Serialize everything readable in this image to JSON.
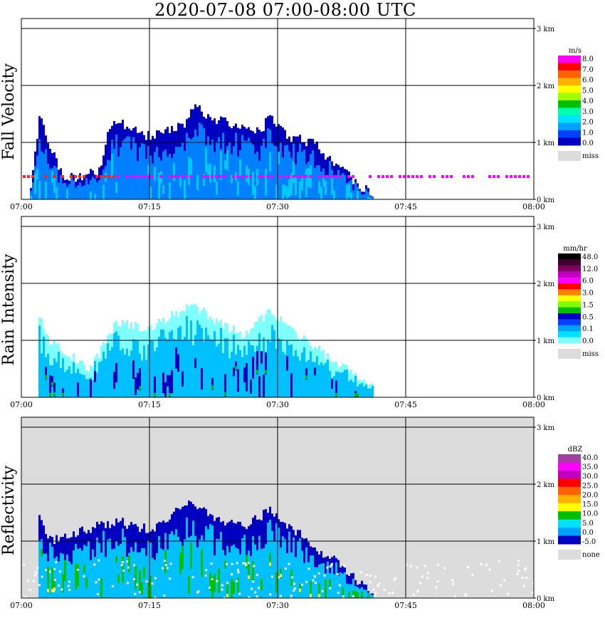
{
  "title": "2020-07-08   07:00-08:00 UTC",
  "x_ticks": [
    "07:00",
    "07:15",
    "07:30",
    "07:45",
    "08:00"
  ],
  "y_ticks": [
    "0 km",
    "1 km",
    "2 km",
    "3 km"
  ],
  "colors": {
    "miss": "#dcdcdc",
    "background": "#ffffff",
    "grid": "#000000"
  },
  "chart_data": [
    {
      "type": "heatmap",
      "title": "Fall Velocity",
      "ylabel": "Fall Velocity",
      "xlim": [
        "07:00",
        "08:00"
      ],
      "ylim_km": [
        0,
        3.0
      ],
      "grid": true,
      "legend_position": "right",
      "legend_unit": "m/s",
      "legend_labels": [
        "8.0",
        "7.0",
        "6.0",
        "5.0",
        "4.0",
        "3.0",
        "2.0",
        "1.0",
        "0.0"
      ],
      "missing_label": "miss",
      "colorscale": [
        "#ff00ff",
        "#ff0000",
        "#ff6000",
        "#ffb000",
        "#ffff00",
        "#a0ff00",
        "#00c000",
        "#00ffb0",
        "#00e0ff",
        "#00a0ff",
        "#0040ff",
        "#0000c0"
      ],
      "echo_tops_km": [
        {
          "t": "07:01",
          "top": 0.2
        },
        {
          "t": "07:02",
          "top": 1.45
        },
        {
          "t": "07:03",
          "top": 1.0
        },
        {
          "t": "07:05",
          "top": 0.35
        },
        {
          "t": "07:09",
          "top": 0.5
        },
        {
          "t": "07:10",
          "top": 1.2
        },
        {
          "t": "07:11",
          "top": 1.4
        },
        {
          "t": "07:13",
          "top": 1.2
        },
        {
          "t": "07:15",
          "top": 1.1
        },
        {
          "t": "07:17",
          "top": 1.2
        },
        {
          "t": "07:19",
          "top": 1.3
        },
        {
          "t": "07:20",
          "top": 1.65
        },
        {
          "t": "07:22",
          "top": 1.45
        },
        {
          "t": "07:24",
          "top": 1.35
        },
        {
          "t": "07:26",
          "top": 1.3
        },
        {
          "t": "07:28",
          "top": 1.2
        },
        {
          "t": "07:29",
          "top": 1.5
        },
        {
          "t": "07:31",
          "top": 1.1
        },
        {
          "t": "07:34",
          "top": 1.0
        },
        {
          "t": "07:36",
          "top": 0.7
        },
        {
          "t": "07:39",
          "top": 0.3
        },
        {
          "t": "07:41",
          "top": 0.1
        }
      ],
      "secondary_layer_km": 0.4,
      "secondary_layer_value": 8.0
    },
    {
      "type": "heatmap",
      "title": "Rain Intensity",
      "ylabel": "Rain Intensity",
      "xlim": [
        "07:00",
        "08:00"
      ],
      "ylim_km": [
        0,
        3.0
      ],
      "grid": true,
      "legend_position": "right",
      "legend_unit": "mm/hr",
      "legend_labels": [
        "48.0",
        "12.0",
        "6.0",
        "3.0",
        "1.5",
        "0.5",
        "0.1",
        "0.0"
      ],
      "missing_label": "miss",
      "colorscale": [
        "#000000",
        "#400030",
        "#800060",
        "#c000c0",
        "#ff00ff",
        "#ff0000",
        "#ff8000",
        "#ffff00",
        "#80ff00",
        "#00c000",
        "#0000c0",
        "#0040ff",
        "#00a0ff",
        "#00e0ff",
        "#80ffff"
      ],
      "echo_tops_km": [
        {
          "t": "07:02",
          "top": 1.4
        },
        {
          "t": "07:03",
          "top": 1.0
        },
        {
          "t": "07:08",
          "top": 0.5
        },
        {
          "t": "07:11",
          "top": 1.3
        },
        {
          "t": "07:15",
          "top": 1.2
        },
        {
          "t": "07:20",
          "top": 1.65
        },
        {
          "t": "07:23",
          "top": 1.3
        },
        {
          "t": "07:26",
          "top": 1.1
        },
        {
          "t": "07:29",
          "top": 1.5
        },
        {
          "t": "07:33",
          "top": 1.0
        },
        {
          "t": "07:37",
          "top": 0.6
        },
        {
          "t": "07:41",
          "top": 0.2
        }
      ],
      "max_intensity_mm_hr": 1.5
    },
    {
      "type": "heatmap",
      "title": "Reflectivity",
      "ylabel": "Reflectivity",
      "xlim": [
        "07:00",
        "08:00"
      ],
      "ylim_km": [
        0,
        3.0
      ],
      "grid": true,
      "legend_position": "right",
      "legend_unit": "dBZ",
      "legend_labels": [
        "40.0",
        "35.0",
        "30.0",
        "25.0",
        "20.0",
        "15.0",
        "10.0",
        "5.0",
        "0.0",
        "-5.0"
      ],
      "missing_label": "none",
      "colorscale": [
        "#a040a0",
        "#ff00ff",
        "#c000c0",
        "#ff0000",
        "#ff6000",
        "#ffb000",
        "#ffff00",
        "#00c000",
        "#00e0ff",
        "#00a0ff",
        "#0000c0"
      ],
      "echo_tops_km": [
        {
          "t": "07:02",
          "top": 1.45
        },
        {
          "t": "07:03",
          "top": 1.0
        },
        {
          "t": "07:11",
          "top": 1.35
        },
        {
          "t": "07:15",
          "top": 1.2
        },
        {
          "t": "07:20",
          "top": 1.7
        },
        {
          "t": "07:23",
          "top": 1.35
        },
        {
          "t": "07:26",
          "top": 1.25
        },
        {
          "t": "07:29",
          "top": 1.55
        },
        {
          "t": "07:33",
          "top": 1.05
        },
        {
          "t": "07:37",
          "top": 0.6
        },
        {
          "t": "07:41",
          "top": 0.1
        }
      ],
      "background_fill": "none"
    }
  ]
}
